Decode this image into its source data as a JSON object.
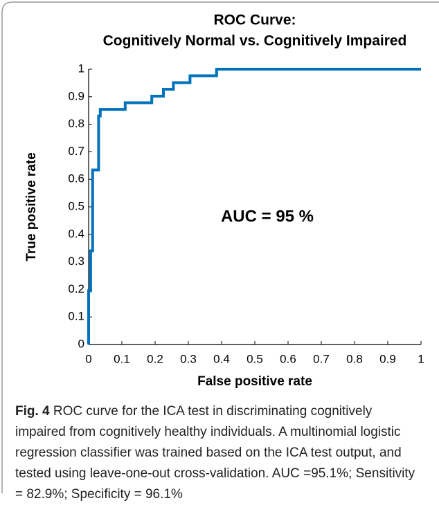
{
  "chart_data": {
    "type": "line",
    "title": "ROC Curve:",
    "subtitle": "Cognitively Normal vs. Cognitively Impaired",
    "xlabel": "False positive rate",
    "ylabel": "True positive rate",
    "annotation": "AUC = 95 %",
    "color": "#0072bd",
    "x": [
      0,
      0,
      0.006,
      0.006,
      0.012,
      0.012,
      0.03,
      0.03,
      0.035,
      0.035,
      0.11,
      0.11,
      0.19,
      0.19,
      0.225,
      0.225,
      0.255,
      0.255,
      0.305,
      0.305,
      0.385,
      0.385,
      1
    ],
    "values": [
      0,
      0.195,
      0.195,
      0.34,
      0.34,
      0.634,
      0.634,
      0.83,
      0.83,
      0.854,
      0.854,
      0.878,
      0.878,
      0.902,
      0.902,
      0.927,
      0.927,
      0.951,
      0.951,
      0.976,
      0.976,
      1,
      1
    ],
    "xlim": [
      0,
      1
    ],
    "ylim": [
      0,
      1
    ],
    "xticks": [
      0,
      0.1,
      0.2,
      0.3,
      0.4,
      0.5,
      0.6,
      0.7,
      0.8,
      0.9,
      1
    ],
    "yticks": [
      0,
      0.1,
      0.2,
      0.3,
      0.4,
      0.5,
      0.6,
      0.7,
      0.8,
      0.9,
      1
    ]
  },
  "caption": {
    "label": "Fig. 4",
    "text": "ROC curve for the ICA test in discriminating cognitively impaired from cognitively healthy individuals. A multinomial logistic regression classifier was trained based on the ICA test output, and tested using leave-one-out cross-validation. AUC =95.1%; Sensitivity = 82.9%; Specificity = 96.1%"
  }
}
